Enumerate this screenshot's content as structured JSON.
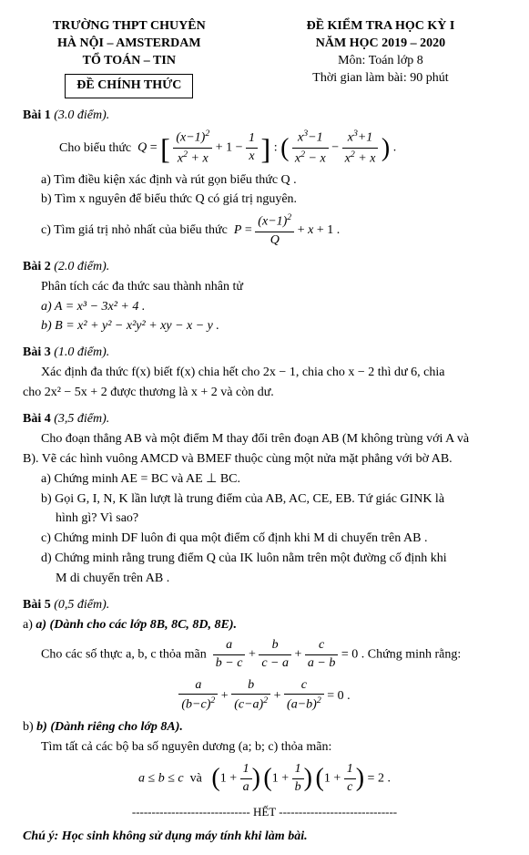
{
  "header": {
    "left": {
      "l1": "TRƯỜNG THPT CHUYÊN",
      "l2": "HÀ NỘI – AMSTERDAM",
      "l3": "TỔ TOÁN – TIN",
      "official": "ĐỀ CHÍNH THỨC"
    },
    "right": {
      "r1": "ĐỀ KIỂM TRA HỌC KỲ I",
      "r2": "NĂM HỌC 2019 – 2020",
      "r3": "Môn: Toán lớp 8",
      "r4": "Thời gian làm bài: 90 phút"
    }
  },
  "bai1": {
    "title": "Bài 1",
    "pts": "(3.0 điểm).",
    "intro": "Cho biểu thức",
    "Q": "Q",
    "a": "a) Tìm điều kiện xác định và rút gọn biểu thức Q .",
    "b": "b) Tìm x nguyên để biểu thức Q có giá trị nguyên.",
    "c": "c) Tìm giá trị nhỏ nhất của biểu thức"
  },
  "bai2": {
    "title": "Bài 2",
    "pts": "(2.0 điểm).",
    "intro": "Phân tích các đa thức sau thành nhân tử",
    "a": "a)  A = x³ − 3x² + 4 .",
    "b": "b)  B = x² + y² − x²y² + xy − x − y ."
  },
  "bai3": {
    "title": "Bài 3",
    "pts": "(1.0 điểm).",
    "l1": "Xác định đa thức f(x) biết f(x) chia hết cho 2x − 1, chia cho x − 2 thì dư 6, chia",
    "l2": "cho 2x² − 5x + 2 được thương là x + 2 và còn dư."
  },
  "bai4": {
    "title": "Bài 4",
    "pts": "(3,5 điểm).",
    "l1": "Cho đoạn thẳng AB và một điểm M thay đổi trên đoạn AB (M không trùng với A và",
    "l2": "B). Vẽ các hình vuông AMCD và BMEF thuộc cùng một nửa mặt phẳng với bờ AB.",
    "a": "a) Chứng minh AE = BC và AE ⊥ BC.",
    "b1": "b) Gọi G, I, N, K lần lượt là trung điểm của AB, AC, CE, EB. Tứ giác GINK là",
    "b2": "hình gì? Vì sao?",
    "c": "c) Chứng minh DF luôn đi qua một điểm cố định khi M di chuyển trên AB .",
    "d1": "d) Chứng minh rằng trung điểm Q của IK luôn nằm trên một đường cố định khi",
    "d2": "M di chuyển trên AB ."
  },
  "bai5": {
    "title": "Bài 5",
    "pts": "(0,5 điểm).",
    "a_title": "a) (Dành cho các lớp 8B, 8C, 8D, 8E).",
    "a_l1a": "Cho các số thực a, b, c thỏa mãn",
    "a_l1b": "= 0 . Chứng minh rằng:",
    "b_title": "b) (Dành riêng cho lớp 8A).",
    "b_l1": "Tìm tất cả các bộ ba số nguyên dương (a; b; c) thỏa mãn:"
  },
  "het": "------------------------------ HẾT ------------------------------",
  "footnote": "Chú ý: Học sinh không sử dụng máy tính khi làm bài."
}
